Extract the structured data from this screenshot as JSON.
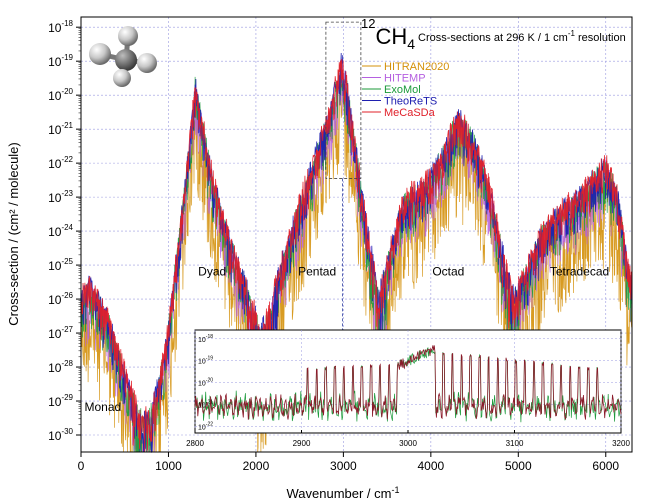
{
  "chart_data": {
    "type": "line",
    "title_molecule": "CH",
    "title_mass": "12",
    "title_sub": "4",
    "title_rest": "Cross-sections at 296 K / 1 cm",
    "title_exp": "-1",
    "title_tail": " resolution",
    "xlabel": "Wavenumber / cm",
    "xlabel_exp": "-1",
    "ylabel": "Cross-section / (cm² / molecule)",
    "xlim": [
      0,
      6300
    ],
    "ylim_log10": [
      -30.5,
      -17.7
    ],
    "x_ticks": [
      0,
      1000,
      2000,
      3000,
      4000,
      5000,
      6000
    ],
    "x_tick_labels": [
      "0",
      "1000",
      "2000",
      "3000",
      "4000",
      "5000",
      "6000"
    ],
    "y_ticks_exp": [
      -30,
      -29,
      -28,
      -27,
      -26,
      -25,
      -24,
      -23,
      -22,
      -21,
      -20,
      -19,
      -18
    ],
    "y_tick_labels": [
      "-30",
      "-29",
      "-28",
      "-27",
      "-26",
      "-25",
      "-24",
      "-23",
      "-22",
      "-21",
      "-20",
      "-19",
      "-18"
    ],
    "grid": true,
    "legend_position": "top-right",
    "series": [
      {
        "name": "HITRAN2020",
        "color": "#d4900a"
      },
      {
        "name": "HITEMP",
        "color": "#b560e0"
      },
      {
        "name": "ExoMol",
        "color": "#1b9a3a"
      },
      {
        "name": "TheoReTS",
        "color": "#1f20b0"
      },
      {
        "name": "MeCaSDa",
        "color": "#e0202a"
      }
    ],
    "envelope_log10": {
      "x": [
        0,
        100,
        300,
        500,
        650,
        720,
        800,
        900,
        1000,
        1100,
        1200,
        1306,
        1380,
        1500,
        1700,
        1900,
        2050,
        2150,
        2300,
        2500,
        2700,
        2850,
        2980,
        3050,
        3150,
        3250,
        3350,
        3400,
        3550,
        3700,
        3900,
        4150,
        4300,
        4500,
        4700,
        4850,
        4950,
        5100,
        5300,
        5500,
        5700,
        5900,
        6000,
        6150,
        6250,
        6300
      ],
      "y": [
        -25.8,
        -25.5,
        -26.4,
        -28.0,
        -29.2,
        -29.5,
        -29.2,
        -28.3,
        -26.7,
        -24.5,
        -22.3,
        -19.6,
        -20.6,
        -22.3,
        -24.2,
        -25.6,
        -26.9,
        -26.3,
        -24.8,
        -23.1,
        -21.5,
        -20.4,
        -18.8,
        -19.8,
        -21.6,
        -23.5,
        -25.0,
        -25.9,
        -24.3,
        -22.9,
        -22.6,
        -21.6,
        -20.5,
        -21.2,
        -22.9,
        -24.9,
        -25.8,
        -25.0,
        -23.8,
        -23.3,
        -22.8,
        -22.2,
        -21.9,
        -23.0,
        -25.0,
        -25.3
      ]
    },
    "annotations": [
      {
        "text": "Monad",
        "x": 250,
        "y_log10": -29.3
      },
      {
        "text": "Dyad",
        "x": 1500,
        "y_log10": -25.3
      },
      {
        "text": "Pentad",
        "x": 2700,
        "y_log10": -25.3
      },
      {
        "text": "Octad",
        "x": 4200,
        "y_log10": -25.3
      },
      {
        "text": "Tetradecad",
        "x": 5700,
        "y_log10": -25.3
      }
    ],
    "inset": {
      "xlim": [
        2800,
        3200
      ],
      "ylim_log10": [
        -22.3,
        -17.6
      ],
      "x_ticks": [
        2800,
        2900,
        3000,
        3100,
        3200
      ],
      "x_tick_labels": [
        "2800",
        "2900",
        "3000",
        "3100",
        "3200"
      ],
      "y_ticks_exp": [
        -22,
        -21,
        -20,
        -19,
        -18
      ],
      "y_tick_labels": [
        "-22",
        "-21",
        "-20",
        "-19",
        "-18"
      ]
    }
  }
}
